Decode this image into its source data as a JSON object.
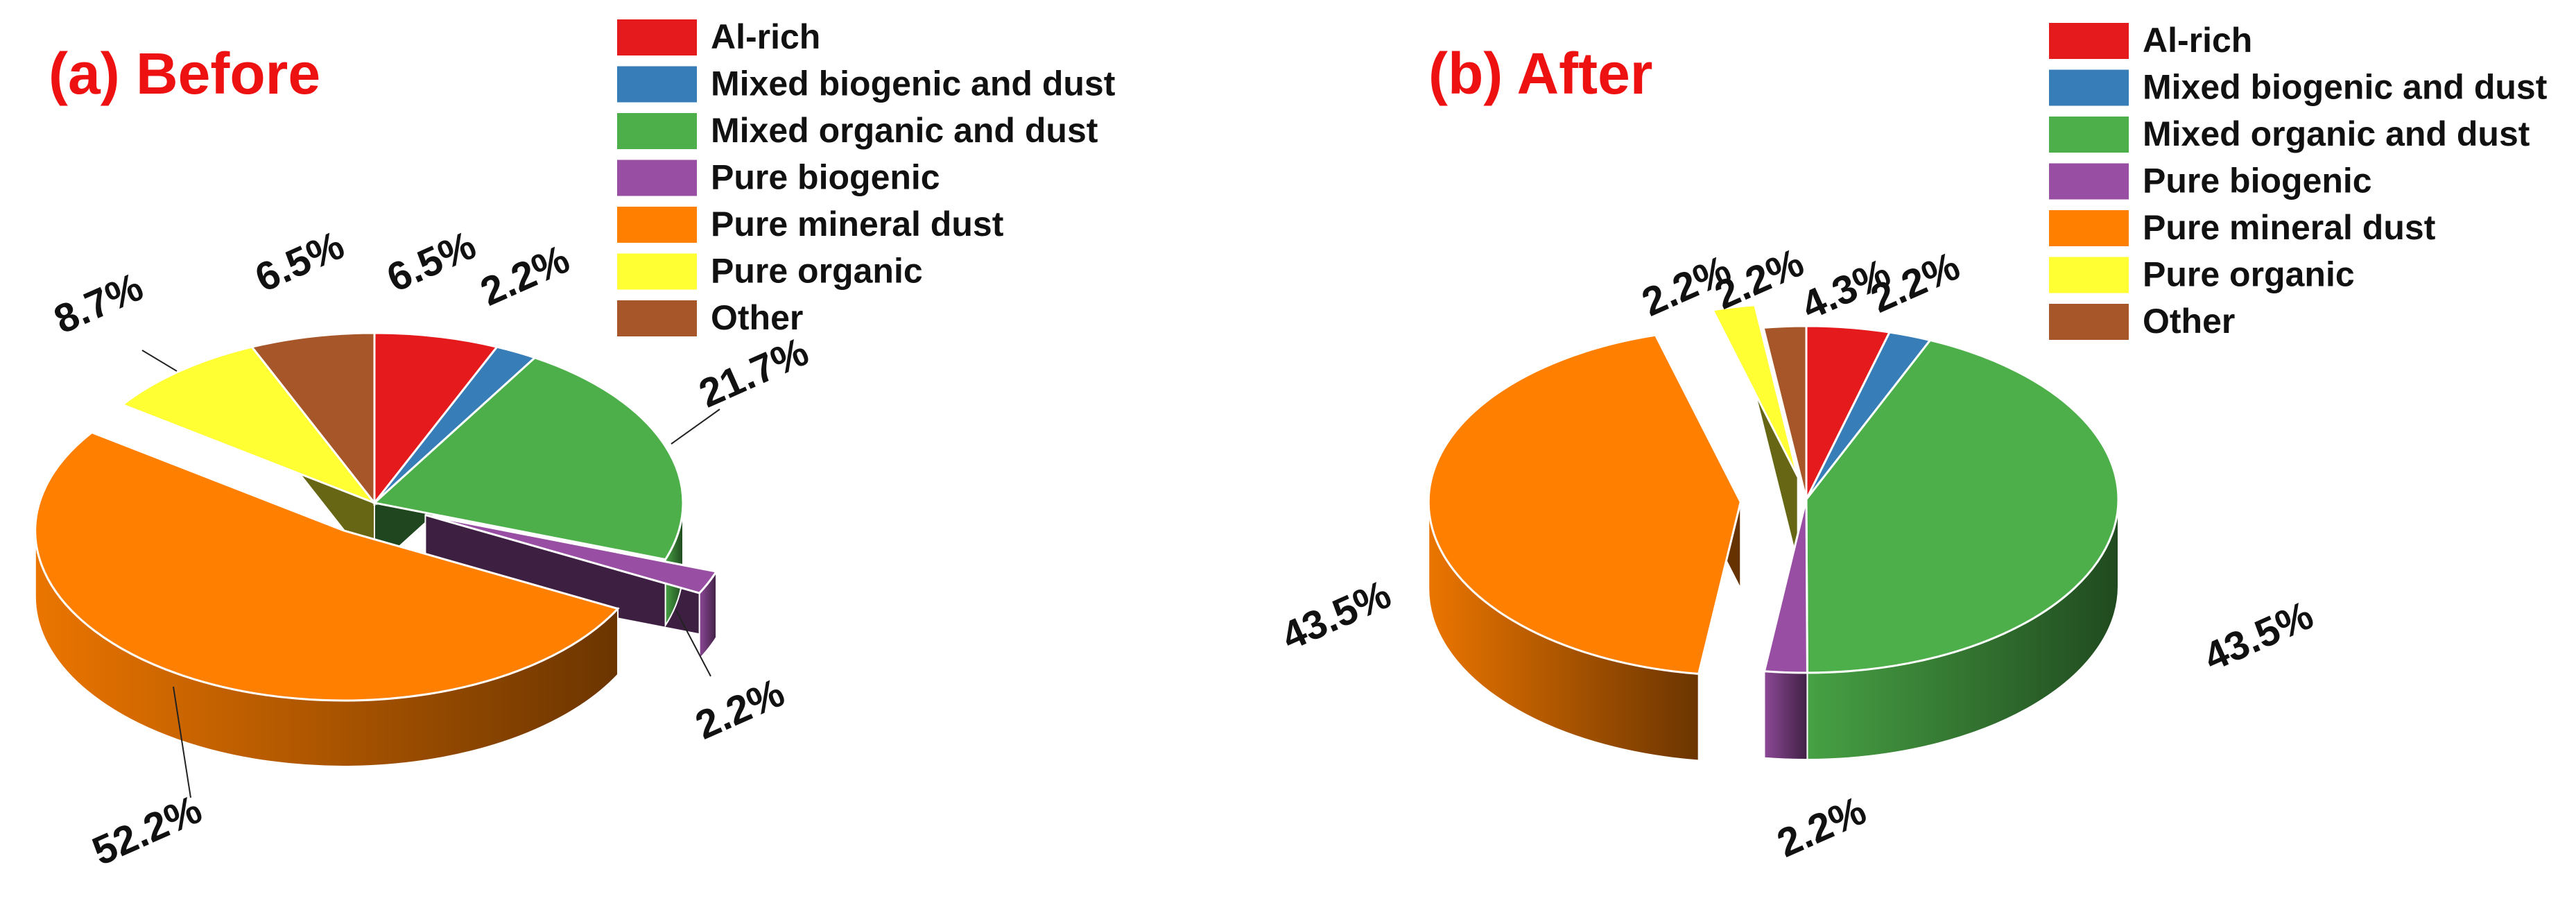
{
  "chart_data": [
    {
      "type": "pie",
      "title": "(a) Before",
      "title_color": "#ee1111",
      "legend_placement": "top-right",
      "categories": [
        "Al-rich",
        "Mixed biogenic and dust",
        "Mixed organic and dust",
        "Pure biogenic",
        "Pure mineral dust",
        "Pure organic",
        "Other"
      ],
      "values": [
        6.5,
        2.2,
        21.7,
        2.2,
        52.2,
        8.7,
        6.5
      ],
      "labels": [
        "6.5%",
        "2.2%",
        "21.7%",
        "2.2%",
        "52.2%",
        "8.7%",
        "6.5%"
      ],
      "colors": [
        "#e41a1c",
        "#377eb8",
        "#4daf4a",
        "#984ea3",
        "#ff7f00",
        "#ffff33",
        "#a65628"
      ]
    },
    {
      "type": "pie",
      "title": "(b) After",
      "title_color": "#ee1111",
      "legend_placement": "top-right",
      "categories": [
        "Al-rich",
        "Mixed biogenic and dust",
        "Mixed organic and dust",
        "Pure biogenic",
        "Pure mineral dust",
        "Pure organic",
        "Other"
      ],
      "values": [
        4.3,
        2.2,
        43.5,
        2.2,
        43.5,
        2.2,
        2.2
      ],
      "labels": [
        "4.3%",
        "2.2%",
        "43.5%",
        "2.2%",
        "43.5%",
        "2.2%",
        "2.2%"
      ],
      "colors": [
        "#e41a1c",
        "#377eb8",
        "#4daf4a",
        "#984ea3",
        "#ff7f00",
        "#ffff33",
        "#a65628"
      ]
    }
  ]
}
